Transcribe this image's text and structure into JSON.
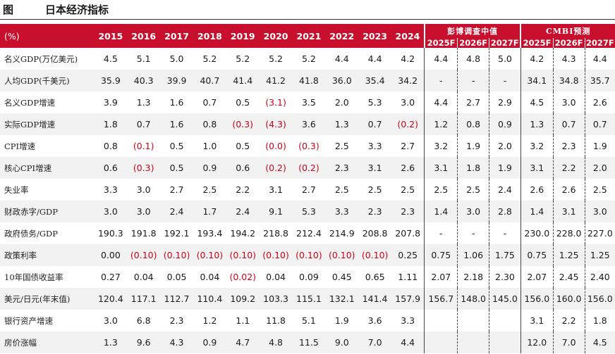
{
  "title": {
    "tag": "图",
    "text": "日本经济指标"
  },
  "header": {
    "unit": "(%)",
    "years": [
      "2015",
      "2016",
      "2017",
      "2018",
      "2019",
      "2020",
      "2021",
      "2022",
      "2023",
      "2024"
    ],
    "group1": {
      "label": "彭博调查中值",
      "years": [
        "2025F",
        "2026F",
        "2027F"
      ]
    },
    "group2": {
      "label": "CMBI预测",
      "years": [
        "2025F",
        "2026F",
        "2027F"
      ]
    }
  },
  "rows": [
    {
      "label": "名义GDP(万亿美元)",
      "values": [
        "4.5",
        "5.1",
        "5.0",
        "5.2",
        "5.2",
        "5.2",
        "5.2",
        "4.4",
        "4.4",
        "4.2"
      ],
      "bbg": [
        "4.4",
        "4.8",
        "5.0"
      ],
      "cmbi": [
        "4.2",
        "4.3",
        "4.4"
      ]
    },
    {
      "label": "人均GDP(千美元)",
      "values": [
        "35.9",
        "40.3",
        "39.9",
        "40.7",
        "41.4",
        "41.2",
        "41.8",
        "36.0",
        "35.4",
        "34.2"
      ],
      "bbg": [
        "-",
        "-",
        "-"
      ],
      "cmbi": [
        "34.1",
        "34.8",
        "35.7"
      ]
    },
    {
      "label": "名义GDP增速",
      "values": [
        "3.9",
        "1.3",
        "1.6",
        "0.7",
        "0.5",
        "(3.1)",
        "3.5",
        "2.0",
        "5.3",
        "3.0"
      ],
      "bbg": [
        "4.4",
        "2.7",
        "2.9"
      ],
      "cmbi": [
        "4.5",
        "3.0",
        "2.6"
      ]
    },
    {
      "label": "实际GDP增速",
      "values": [
        "1.8",
        "0.7",
        "1.6",
        "0.8",
        "(0.3)",
        "(4.3)",
        "3.6",
        "1.3",
        "0.7",
        "(0.2)"
      ],
      "bbg": [
        "1.2",
        "0.8",
        "0.9"
      ],
      "cmbi": [
        "1.3",
        "0.7",
        "0.7"
      ]
    },
    {
      "label": "CPI增速",
      "values": [
        "0.8",
        "(0.1)",
        "0.5",
        "1.0",
        "0.5",
        "(0.0)",
        "(0.3)",
        "2.5",
        "3.3",
        "2.7"
      ],
      "bbg": [
        "3.2",
        "1.9",
        "2.0"
      ],
      "cmbi": [
        "3.2",
        "2.3",
        "1.9"
      ]
    },
    {
      "label": "核心CPI增速",
      "values": [
        "0.6",
        "(0.3)",
        "0.5",
        "0.9",
        "0.6",
        "(0.2)",
        "(0.2)",
        "2.3",
        "3.1",
        "2.6"
      ],
      "bbg": [
        "3.1",
        "1.8",
        "1.9"
      ],
      "cmbi": [
        "3.1",
        "2.2",
        "2.0"
      ]
    },
    {
      "label": "失业率",
      "values": [
        "3.3",
        "3.0",
        "2.7",
        "2.5",
        "2.2",
        "3.1",
        "2.7",
        "2.5",
        "2.5",
        "2.5"
      ],
      "bbg": [
        "2.5",
        "2.5",
        "2.4"
      ],
      "cmbi": [
        "2.6",
        "2.6",
        "2.5"
      ]
    },
    {
      "label": "财政赤字/GDP",
      "values": [
        "3.0",
        "3.0",
        "2.4",
        "1.7",
        "2.4",
        "9.1",
        "5.3",
        "3.3",
        "2.3",
        "2.3"
      ],
      "bbg": [
        "1.4",
        "3.0",
        "2.8"
      ],
      "cmbi": [
        "1.4",
        "3.1",
        "3.0"
      ]
    },
    {
      "label": "政府债务/GDP",
      "values": [
        "190.3",
        "191.8",
        "192.1",
        "193.4",
        "194.2",
        "218.8",
        "212.4",
        "214.9",
        "208.8",
        "207.8"
      ],
      "bbg": [
        "-",
        "-",
        "-"
      ],
      "cmbi": [
        "230.0",
        "228.0",
        "227.0"
      ]
    },
    {
      "label": "政策利率",
      "values": [
        "0.00",
        "(0.10)",
        "(0.10)",
        "(0.10)",
        "(0.10)",
        "(0.10)",
        "(0.10)",
        "(0.10)",
        "(0.10)",
        "0.25"
      ],
      "bbg": [
        "0.75",
        "1.06",
        "1.75"
      ],
      "cmbi": [
        "0.75",
        "1.25",
        "1.25"
      ]
    },
    {
      "label": "10年国债收益率",
      "values": [
        "0.27",
        "0.04",
        "0.05",
        "0.04",
        "(0.02)",
        "0.04",
        "0.09",
        "0.45",
        "0.65",
        "1.11"
      ],
      "bbg": [
        "2.07",
        "2.18",
        "2.30"
      ],
      "cmbi": [
        "2.07",
        "2.45",
        "2.40"
      ]
    },
    {
      "label": "美元/日元(年末值)",
      "values": [
        "120.4",
        "117.1",
        "112.7",
        "110.4",
        "109.2",
        "103.3",
        "115.1",
        "132.1",
        "141.4",
        "157.9"
      ],
      "bbg": [
        "156.7",
        "148.0",
        "145.0"
      ],
      "cmbi": [
        "156.0",
        "160.0",
        "156.0"
      ]
    },
    {
      "label": "银行资产增速",
      "values": [
        "3.0",
        "6.8",
        "2.3",
        "1.2",
        "1.1",
        "11.8",
        "5.1",
        "1.9",
        "3.6",
        "3.3"
      ],
      "bbg": [
        "",
        "",
        ""
      ],
      "cmbi": [
        "3.1",
        "2.2",
        "1.8"
      ]
    },
    {
      "label": "房价涨幅",
      "values": [
        "1.3",
        "9.6",
        "4.3",
        "0.9",
        "4.7",
        "4.8",
        "11.5",
        "9.0",
        "7.0",
        "4.4"
      ],
      "bbg": [
        "",
        "",
        ""
      ],
      "cmbi": [
        "12.0",
        "7.0",
        "4.5"
      ]
    }
  ],
  "colors": {
    "header_bg": "#c8102e",
    "negative": "#d0021b",
    "stripe": "#f2f2f2"
  }
}
